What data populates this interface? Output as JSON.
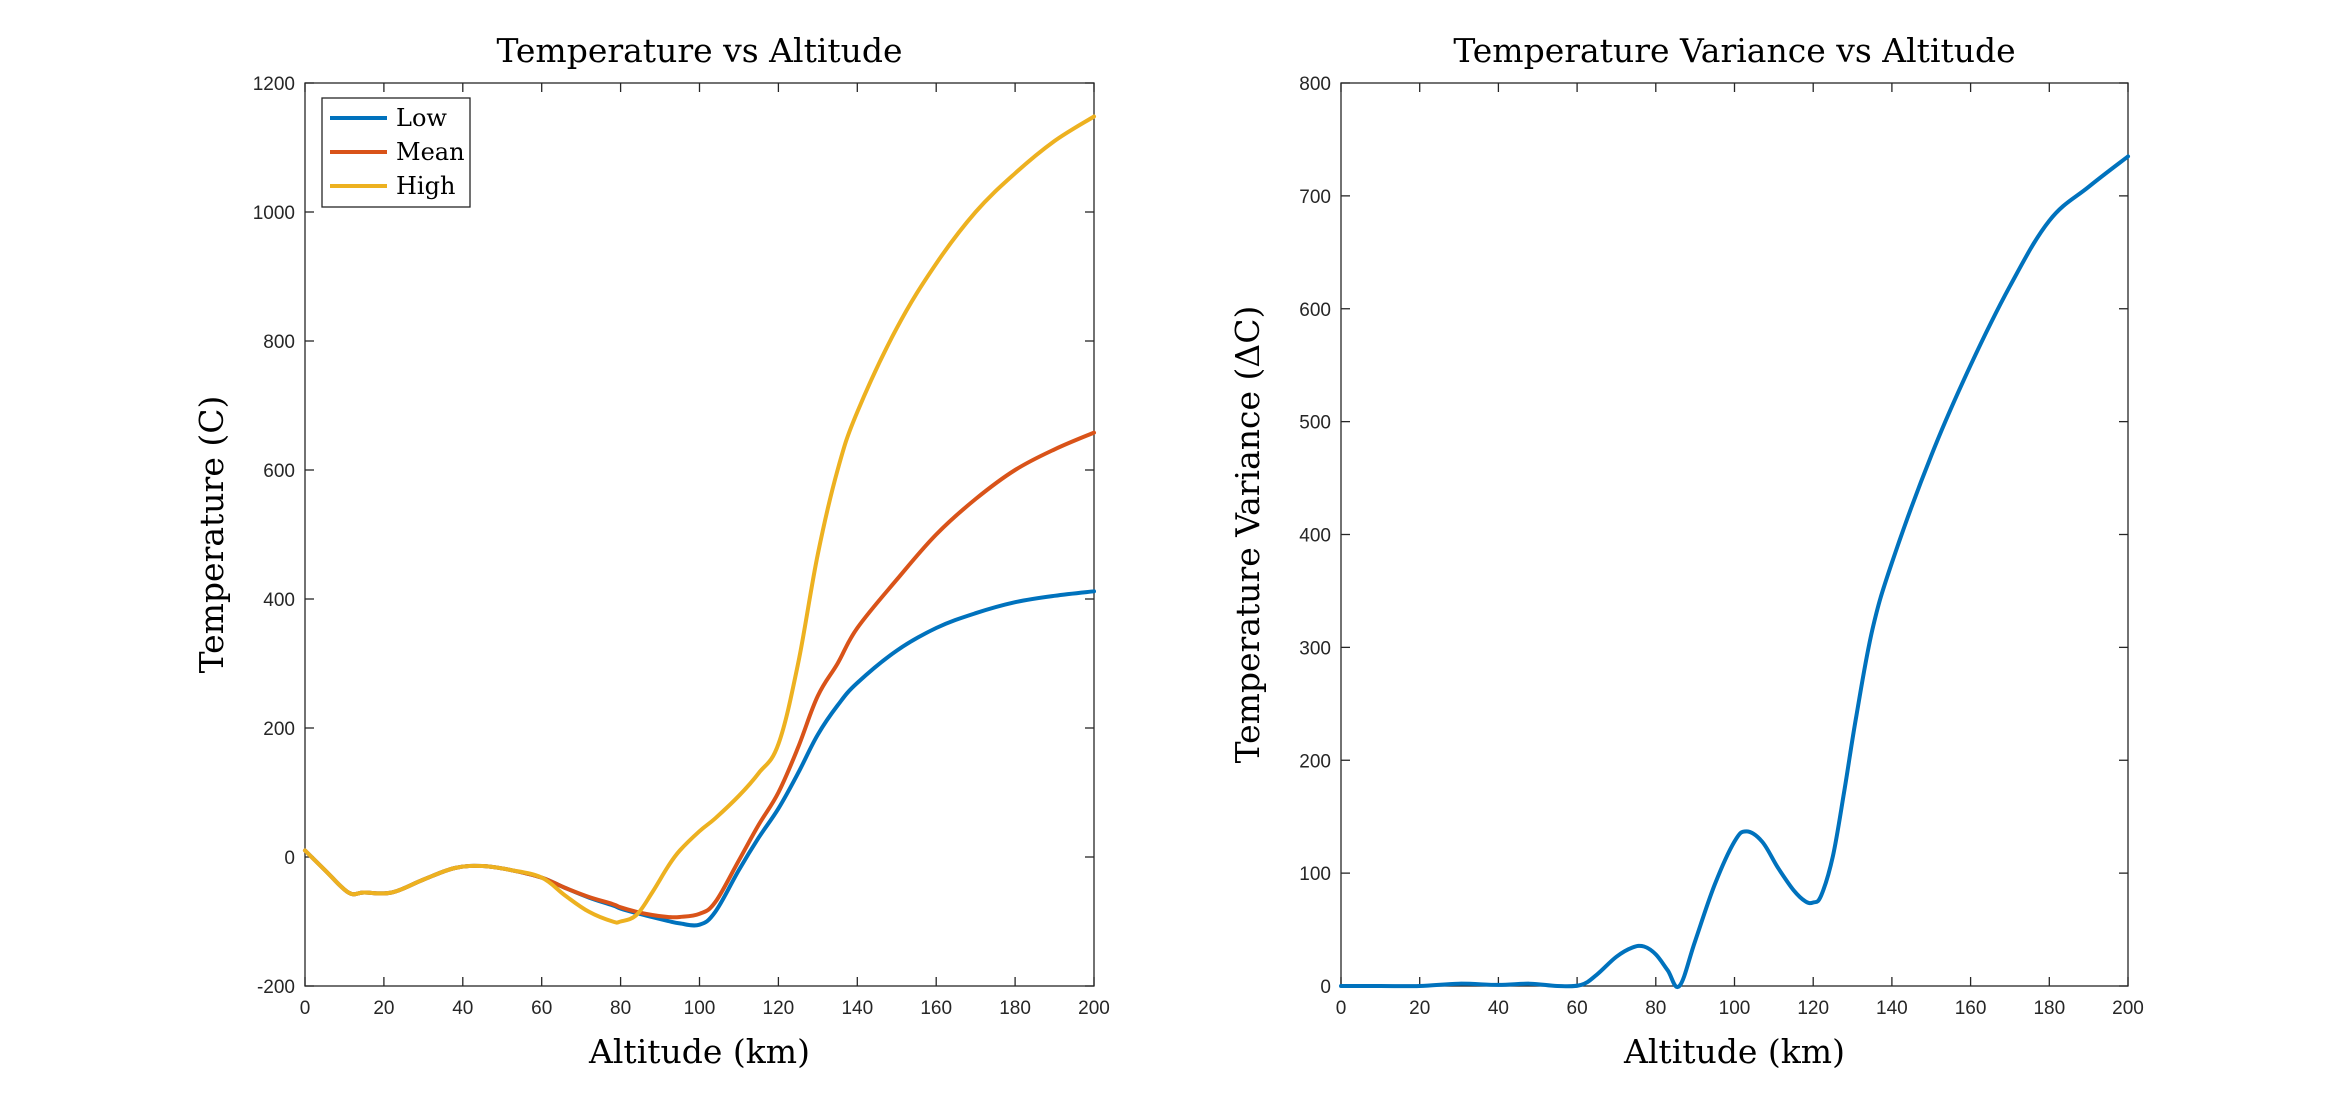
{
  "chart_data": [
    {
      "type": "line",
      "title": "Temperature vs Altitude",
      "xlabel": "Altitude (km)",
      "ylabel": "Temperature (C)",
      "xlim": [
        0,
        200
      ],
      "ylim": [
        -200,
        1200
      ],
      "xticks": [
        0,
        20,
        40,
        60,
        80,
        100,
        120,
        140,
        160,
        180,
        200
      ],
      "yticks": [
        -200,
        0,
        200,
        400,
        600,
        800,
        1000,
        1200
      ],
      "grid": false,
      "legend": "top-left",
      "x": [
        0,
        5,
        11,
        15,
        22,
        30,
        38,
        45,
        52,
        60,
        66,
        72,
        78,
        80,
        84,
        88,
        92,
        95,
        100,
        104,
        110,
        115,
        120,
        125,
        130,
        135,
        140,
        150,
        160,
        170,
        180,
        190,
        200
      ],
      "series": [
        {
          "name": "Low",
          "color": "#0072BD",
          "values": [
            10,
            -20,
            -55,
            -55,
            -55,
            -35,
            -17,
            -14,
            -20,
            -32,
            -48,
            -63,
            -75,
            -80,
            -87,
            -93,
            -99,
            -103,
            -105,
            -85,
            -20,
            30,
            75,
            130,
            190,
            235,
            270,
            320,
            355,
            378,
            395,
            405,
            412
          ]
        },
        {
          "name": "Mean",
          "color": "#D95319",
          "values": [
            10,
            -20,
            -55,
            -55,
            -55,
            -35,
            -17,
            -14,
            -20,
            -32,
            -48,
            -62,
            -73,
            -78,
            -85,
            -90,
            -93,
            -93,
            -88,
            -70,
            -5,
            50,
            100,
            170,
            250,
            300,
            355,
            430,
            500,
            555,
            600,
            632,
            658
          ]
        },
        {
          "name": "High",
          "color": "#EDB120",
          "values": [
            10,
            -20,
            -55,
            -55,
            -55,
            -35,
            -17,
            -14,
            -20,
            -32,
            -60,
            -85,
            -100,
            -100,
            -90,
            -55,
            -15,
            10,
            40,
            60,
            95,
            130,
            175,
            300,
            470,
            600,
            690,
            820,
            920,
            1000,
            1060,
            1110,
            1148
          ]
        }
      ]
    },
    {
      "type": "line",
      "title": "Temperature Variance vs Altitude",
      "xlabel": "Altitude (km)",
      "ylabel": "Temperature Variance (ΔC)",
      "xlim": [
        0,
        200
      ],
      "ylim": [
        0,
        800
      ],
      "xticks": [
        0,
        20,
        40,
        60,
        80,
        100,
        120,
        140,
        160,
        180,
        200
      ],
      "yticks": [
        0,
        100,
        200,
        300,
        400,
        500,
        600,
        700,
        800
      ],
      "grid": false,
      "legend": "none",
      "x": [
        0,
        10,
        20,
        30,
        40,
        48,
        55,
        61,
        65,
        70,
        74,
        77,
        80,
        83,
        86,
        90,
        95,
        100,
        103,
        107,
        111,
        115,
        118,
        120,
        122,
        125,
        128,
        131,
        135,
        140,
        150,
        160,
        170,
        180,
        190,
        200
      ],
      "series": [
        {
          "name": "Variance",
          "color": "#0072BD",
          "values": [
            0,
            0,
            0,
            2,
            1,
            2,
            0,
            1,
            10,
            26,
            34,
            35,
            28,
            14,
            0,
            40,
            90,
            128,
            137,
            128,
            105,
            85,
            75,
            74,
            80,
            115,
            175,
            240,
            315,
            375,
            470,
            550,
            620,
            678,
            708,
            735
          ]
        }
      ]
    }
  ]
}
